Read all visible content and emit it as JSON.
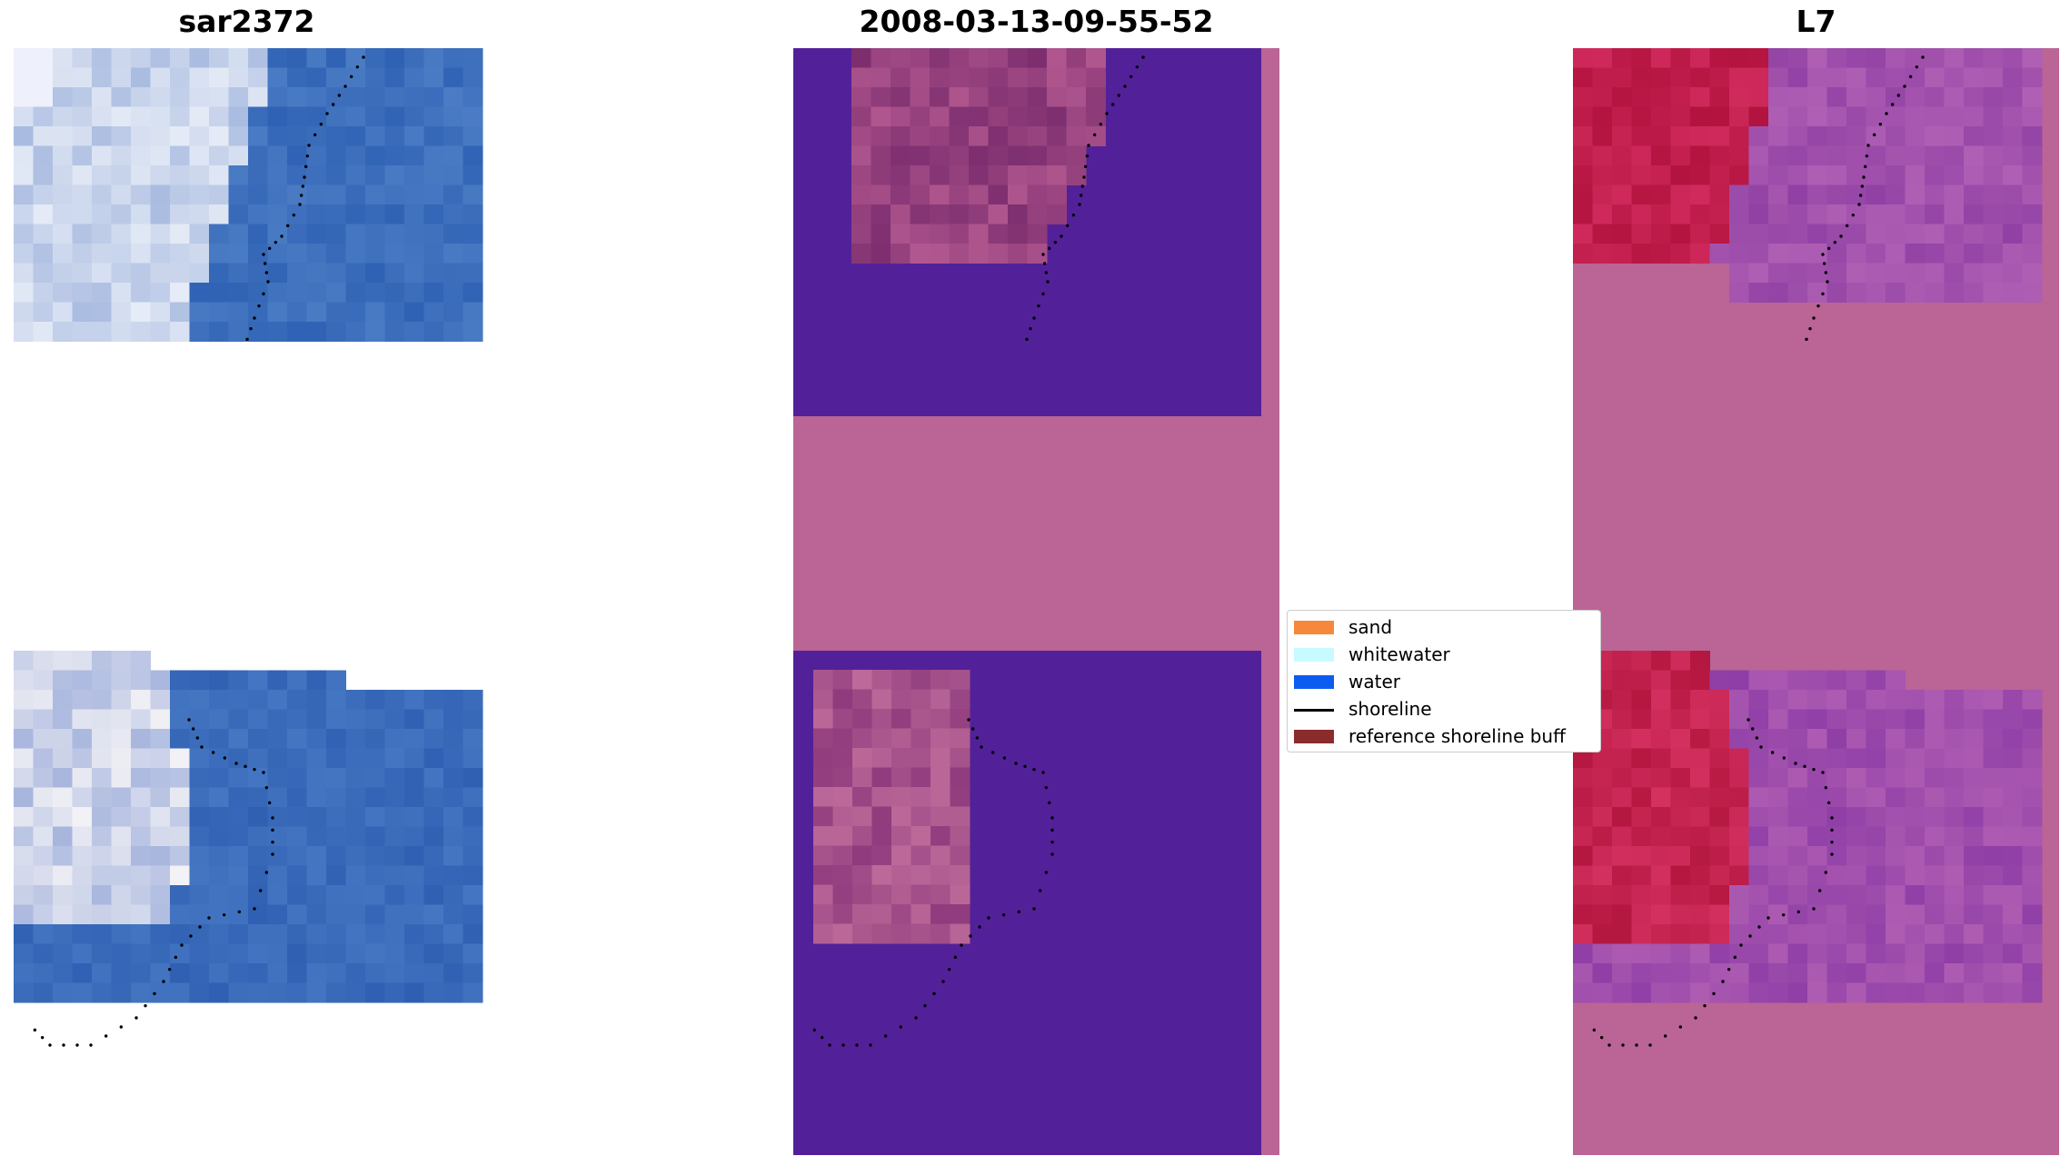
{
  "panels": [
    {
      "id": "sar",
      "title": "sar2372"
    },
    {
      "id": "classified",
      "title": "2008-03-13-09-55-52"
    },
    {
      "id": "mndwi",
      "title": "L7"
    }
  ],
  "legend": {
    "items": [
      {
        "label": "sand",
        "color": "#f5883a",
        "kind": "patch"
      },
      {
        "label": "whitewater",
        "color": "#c8fbff",
        "kind": "patch"
      },
      {
        "label": "water",
        "color": "#0d5cf0",
        "kind": "patch"
      },
      {
        "label": "shoreline",
        "color": "#000000",
        "kind": "line"
      },
      {
        "label": "reference shoreline buff",
        "color": "#8b2c2c",
        "kind": "patch"
      }
    ]
  },
  "colors": {
    "nodata_pink": "#ba6595",
    "water_purple": "#522199",
    "sar_blue": "#3a66b4",
    "mndwi_red": "#bd1a4a",
    "mndwi_purple": "#9c48a8"
  }
}
